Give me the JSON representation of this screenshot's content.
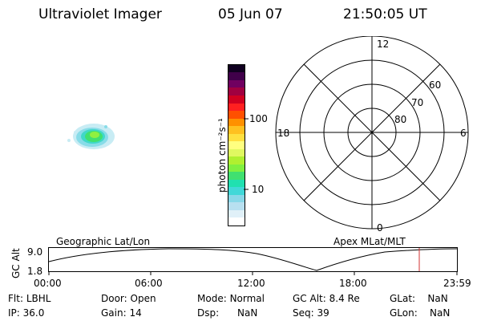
{
  "header": {
    "instrument": "Ultraviolet Imager",
    "date": "05 Jun 07",
    "time": "21:50:05 UT"
  },
  "colorbar": {
    "unit_label": "photon cm⁻²s⁻¹",
    "ticks": [
      "100",
      "10"
    ],
    "colors": [
      "#ffffff",
      "#e0f0f8",
      "#b8e0f0",
      "#88d8e8",
      "#40d8d8",
      "#20e0b0",
      "#40e070",
      "#80f040",
      "#b0f030",
      "#e0f860",
      "#ffff80",
      "#ffe040",
      "#ffc020",
      "#ff9000",
      "#ff5000",
      "#ff2020",
      "#d00020",
      "#a00040",
      "#700060",
      "#40004a",
      "#100020"
    ]
  },
  "polar": {
    "labels": {
      "top": "12",
      "bottom": "0",
      "left": "18",
      "right": "6"
    },
    "lat_labels": [
      "60",
      "70",
      "80"
    ]
  },
  "timeline": {
    "label_left": "Geographic Lat/Lon",
    "label_right": "Apex MLat/MLT",
    "axis_label": "GC Alt",
    "y_ticks": [
      "9.0",
      "1.8"
    ],
    "x_ticks": [
      "00:00",
      "06:00",
      "12:00",
      "18:00",
      "23:59"
    ],
    "marker_color": "#d03030"
  },
  "info": {
    "row1": [
      {
        "label": "Flt:",
        "value": "LBHL"
      },
      {
        "label": "Door:",
        "value": "Open"
      },
      {
        "label": "Mode:",
        "value": "Normal"
      },
      {
        "label": "GC Alt:",
        "value": "8.4 Re"
      },
      {
        "label": "GLat:",
        "value": "NaN"
      }
    ],
    "row2": [
      {
        "label": "IP:",
        "value": "36.0"
      },
      {
        "label": "Gain:",
        "value": "14"
      },
      {
        "label": "Dsp:",
        "value": "NaN"
      },
      {
        "label": "Seq:",
        "value": "39"
      },
      {
        "label": "GLon:",
        "value": "NaN"
      }
    ]
  }
}
